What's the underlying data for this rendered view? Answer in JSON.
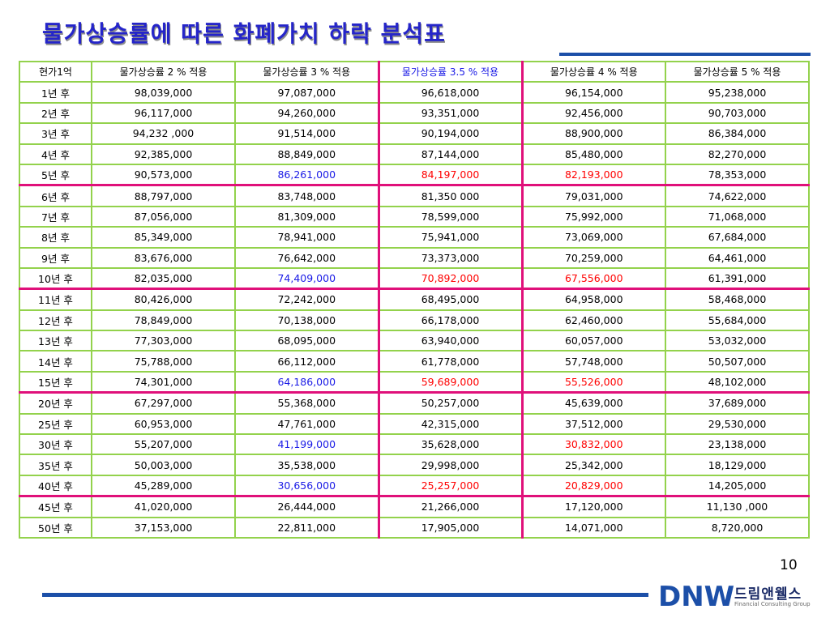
{
  "title": "물가상승률에 따른 화폐가치 하락 분석표",
  "page_number": "10",
  "brand": {
    "logo_text": "DNW",
    "name_kr": "드림앤웰스",
    "name_en": "Financial Consulting Group"
  },
  "table": {
    "headers": [
      "현가1억",
      "물가상승률 2 % 적용",
      "물가상승률 3 % 적용",
      "물가상승률 3.5 % 적용",
      "물가상승률 4 % 적용",
      "물가상승률 5 % 적용"
    ],
    "rows": [
      [
        "1년 후",
        "98,039,000",
        "97,087,000",
        "96,618,000",
        "96,154,000",
        "95,238,000"
      ],
      [
        "2년 후",
        "96,117,000",
        "94,260,000",
        "93,351,000",
        "92,456,000",
        "90,703,000"
      ],
      [
        "3년 후",
        "94,232 ,000",
        "91,514,000",
        "90,194,000",
        "88,900,000",
        "86,384,000"
      ],
      [
        "4년 후",
        "92,385,000",
        "88,849,000",
        "87,144,000",
        "85,480,000",
        "82,270,000"
      ],
      [
        "5년 후",
        "90,573,000",
        "86,261,000",
        "84,197,000",
        "82,193,000",
        "78,353,000"
      ],
      [
        "6년 후",
        "88,797,000",
        "83,748,000",
        "81,350 000",
        "79,031,000",
        "74,622,000"
      ],
      [
        "7년 후",
        "87,056,000",
        "81,309,000",
        "78,599,000",
        "75,992,000",
        "71,068,000"
      ],
      [
        "8년 후",
        "85,349,000",
        "78,941,000",
        "75,941,000",
        "73,069,000",
        "67,684,000"
      ],
      [
        "9년 후",
        "83,676,000",
        "76,642,000",
        "73,373,000",
        "70,259,000",
        "64,461,000"
      ],
      [
        "10년 후",
        "82,035,000",
        "74,409,000",
        "70,892,000",
        "67,556,000",
        "61,391,000"
      ],
      [
        "11년 후",
        "80,426,000",
        "72,242,000",
        "68,495,000",
        "64,958,000",
        "58,468,000"
      ],
      [
        "12년 후",
        "78,849,000",
        "70,138,000",
        "66,178,000",
        "62,460,000",
        "55,684,000"
      ],
      [
        "13년 후",
        "77,303,000",
        "68,095,000",
        "63,940,000",
        "60,057,000",
        "53,032,000"
      ],
      [
        "14년 후",
        "75,788,000",
        "66,112,000",
        "61,778,000",
        "57,748,000",
        "50,507,000"
      ],
      [
        "15년 후",
        "74,301,000",
        "64,186,000",
        "59,689,000",
        "55,526,000",
        "48,102,000"
      ],
      [
        "20년 후",
        "67,297,000",
        "55,368,000",
        "50,257,000",
        "45,639,000",
        "37,689,000"
      ],
      [
        "25년 후",
        "60,953,000",
        "47,761,000",
        "42,315,000",
        "37,512,000",
        "29,530,000"
      ],
      [
        "30년 후",
        "55,207,000",
        "41,199,000",
        "35,628,000",
        "30,832,000",
        "23,138,000"
      ],
      [
        "35년 후",
        "50,003,000",
        "35,538,000",
        "29,998,000",
        "25,342,000",
        "18,129,000"
      ],
      [
        "40년 후",
        "45,289,000",
        "30,656,000",
        "25,257,000",
        "20,829,000",
        "14,205,000"
      ],
      [
        "45년 후",
        "41,020,000",
        "26,444,000",
        "21,266,000",
        "17,120,000",
        "11,130 ,000"
      ],
      [
        "50년 후",
        "37,153,000",
        "22,811,000",
        "17,905,000",
        "14,071,000",
        "8,720,000"
      ]
    ],
    "marked_rows": [
      4,
      9,
      14,
      19
    ],
    "highlight_column": 3,
    "highlight_cells": {
      "4": {
        "2": "blue",
        "3": "red",
        "4": "red"
      },
      "9": {
        "2": "blue",
        "3": "red",
        "4": "red"
      },
      "14": {
        "2": "blue",
        "3": "red",
        "4": "red"
      },
      "17": {
        "2": "blue",
        "4": "red"
      },
      "19": {
        "2": "blue",
        "3": "red",
        "4": "red"
      }
    }
  },
  "colors": {
    "title": "#2525c9",
    "grid": "#93d24c",
    "marker": "#e0107a",
    "blue_value": "#1919e6",
    "red_value": "#ff0000",
    "rule": "#1c4fa8"
  }
}
